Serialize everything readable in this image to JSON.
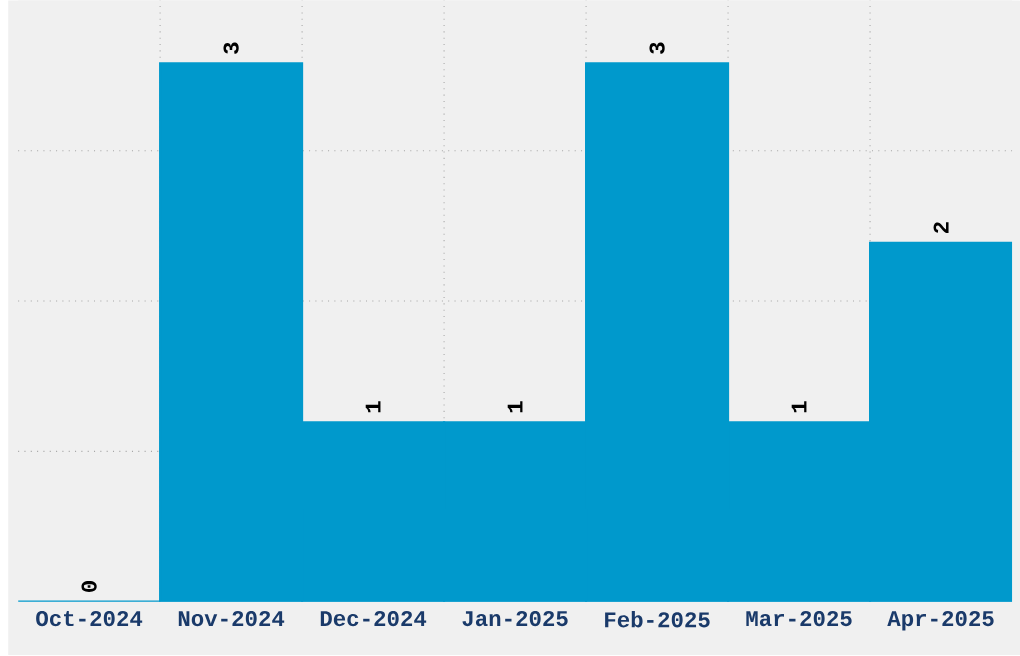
{
  "chart_data": {
    "type": "bar",
    "categories": [
      "Oct-2024",
      "Nov-2024",
      "Dec-2024",
      "Jan-2025",
      "Feb-2025",
      "Mar-2025",
      "Apr-2025"
    ],
    "values": [
      0,
      3,
      1,
      1,
      3,
      1,
      2
    ],
    "color": "#0099cc",
    "ylim": [
      0,
      3.35
    ],
    "yticks": [
      {
        "value": 0.8375,
        "label": null
      },
      {
        "value": 1.675,
        "label": null
      },
      {
        "value": 2.5125,
        "label": null
      }
    ],
    "tick_labels": "x",
    "grid": true,
    "data_labels": true
  }
}
